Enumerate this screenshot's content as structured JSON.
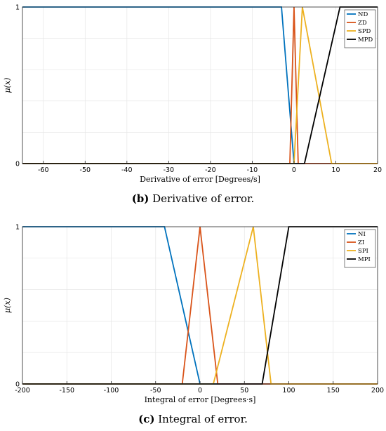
{
  "chart_data": [
    {
      "type": "line",
      "ylabel": "μ(x)",
      "xlabel": "Derivative of error [Degrees/s]",
      "xlim": [
        -65,
        20
      ],
      "ylim": [
        0,
        1
      ],
      "xticks": [
        -60,
        -50,
        -40,
        -30,
        -20,
        -10,
        0,
        10,
        20
      ],
      "yticks": [
        0,
        1
      ],
      "grid": true,
      "legend_position": "top-right",
      "series": [
        {
          "name": "ND",
          "color": "#0072BD",
          "x": [
            -65,
            -3,
            0,
            20
          ],
          "y": [
            1,
            1,
            0,
            0
          ]
        },
        {
          "name": "ZD",
          "color": "#D95319",
          "x": [
            -65,
            -1,
            0,
            1,
            20
          ],
          "y": [
            0,
            0,
            1,
            0,
            0
          ]
        },
        {
          "name": "SPD",
          "color": "#EDB120",
          "x": [
            -65,
            0,
            2,
            9,
            20
          ],
          "y": [
            0,
            0,
            1,
            0,
            0
          ]
        },
        {
          "name": "MPD",
          "color": "#000000",
          "x": [
            -65,
            2.5,
            11,
            20
          ],
          "y": [
            0,
            0,
            1,
            1
          ]
        }
      ],
      "caption_letter": "(b)",
      "caption_text": " Derivative of error."
    },
    {
      "type": "line",
      "ylabel": "μ(x)",
      "xlabel": "Integral of error [Degrees·s]",
      "xlim": [
        -200,
        200
      ],
      "ylim": [
        0,
        1
      ],
      "xticks": [
        -200,
        -150,
        -100,
        -50,
        0,
        50,
        100,
        150,
        200
      ],
      "yticks": [
        0,
        1
      ],
      "grid": true,
      "legend_position": "top-right",
      "series": [
        {
          "name": "NI",
          "color": "#0072BD",
          "x": [
            -200,
            -40,
            0,
            200
          ],
          "y": [
            1,
            1,
            0,
            0
          ]
        },
        {
          "name": "ZI",
          "color": "#D95319",
          "x": [
            -200,
            -20,
            0,
            20,
            200
          ],
          "y": [
            0,
            0,
            1,
            0,
            0
          ]
        },
        {
          "name": "SPI",
          "color": "#EDB120",
          "x": [
            -200,
            15,
            60,
            80,
            200
          ],
          "y": [
            0,
            0,
            1,
            0,
            0
          ]
        },
        {
          "name": "MPI",
          "color": "#000000",
          "x": [
            -200,
            70,
            100,
            200
          ],
          "y": [
            0,
            0,
            1,
            1
          ]
        }
      ],
      "caption_letter": "(c)",
      "caption_text": " Integral of error."
    }
  ]
}
